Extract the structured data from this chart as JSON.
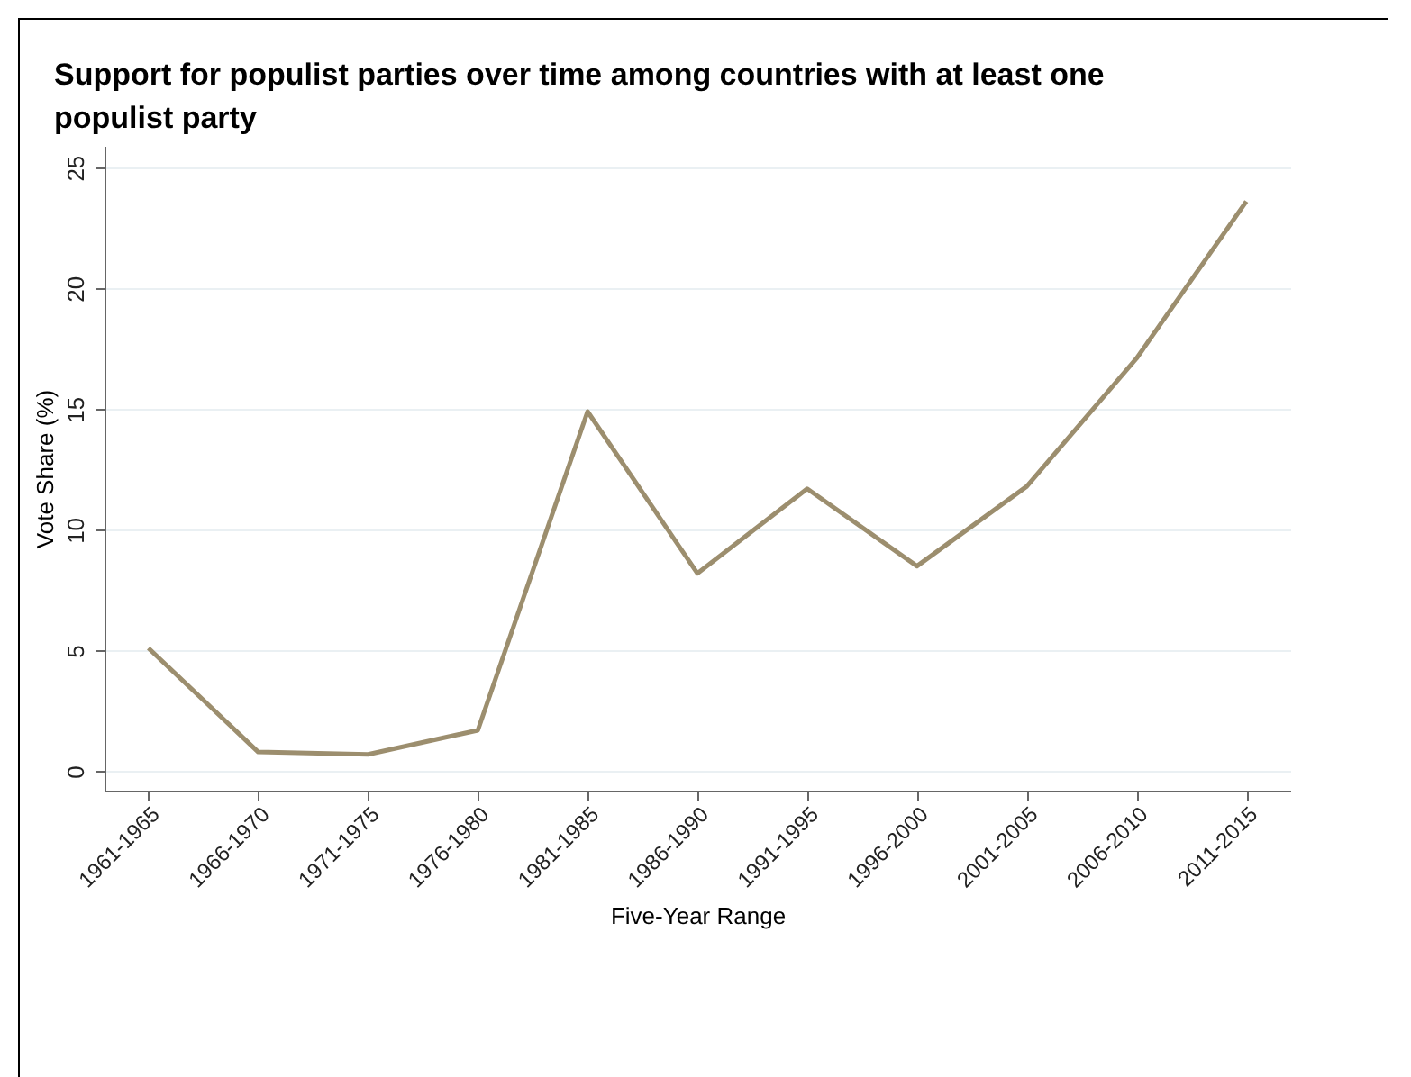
{
  "chart_data": {
    "type": "line",
    "title": "Support for populist parties over time among countries with at least one populist party",
    "xlabel": "Five-Year Range",
    "ylabel": "Vote Share (%)",
    "categories": [
      "1961-1965",
      "1966-1970",
      "1971-1975",
      "1976-1980",
      "1981-1985",
      "1986-1990",
      "1991-1995",
      "1996-2000",
      "2001-2005",
      "2006-2010",
      "2011-2015"
    ],
    "series": [
      {
        "color": "#9c8e6e",
        "values": [
          5.1,
          0.8,
          0.7,
          1.7,
          14.9,
          8.2,
          11.7,
          8.5,
          11.8,
          17.1,
          23.6
        ]
      }
    ],
    "ylim": [
      -0.8,
      25.9
    ],
    "yticks": [
      0,
      5,
      10,
      15,
      20,
      25
    ],
    "grid": "y",
    "marker": "none",
    "line_style": "solid"
  }
}
